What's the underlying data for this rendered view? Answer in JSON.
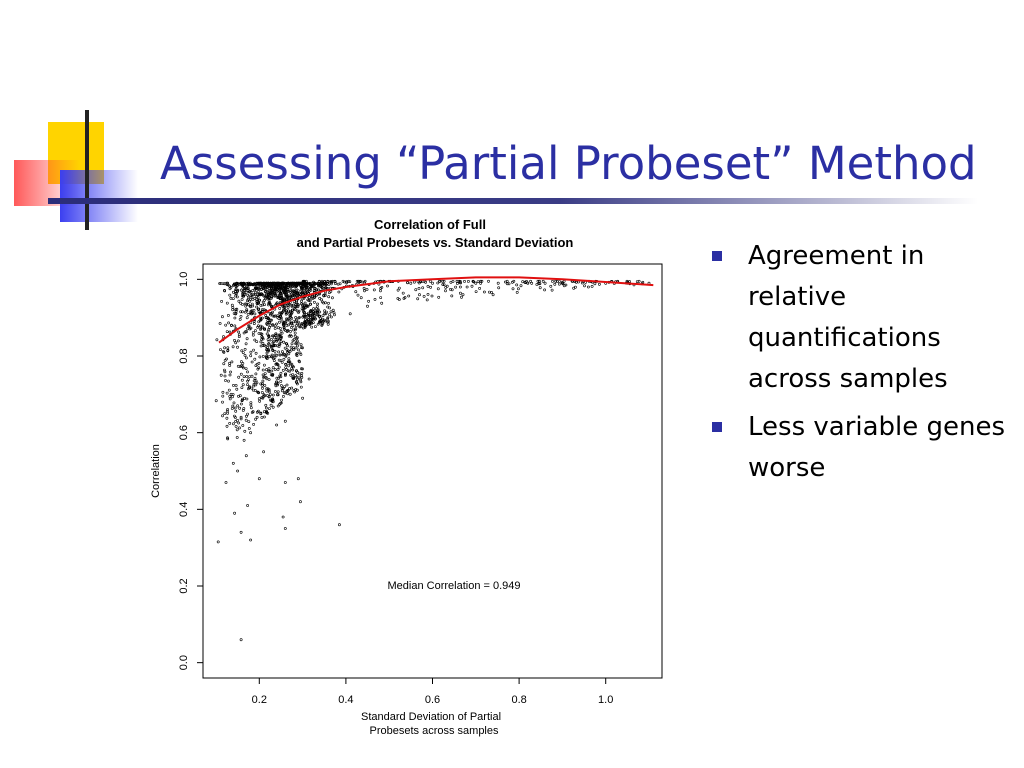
{
  "slide": {
    "title": "Assessing “Partial Probeset” Method",
    "bullets": [
      "Agreement in relative quantifications across samples",
      "Less variable genes worse"
    ]
  },
  "colors": {
    "title": "#2b2fa3",
    "bullet": "#2b2fa3",
    "deco_yellow": "#ffd400",
    "deco_red": "#ff3b3b",
    "deco_blue": "#3b3ff0",
    "fit_line": "#e01010"
  },
  "chart_data": {
    "type": "scatter",
    "title": [
      "Correlation of Full",
      "and Partial Probesets vs. Standard Deviation"
    ],
    "xlabel": [
      "Standard Deviation of Partial",
      "Probesets across samples"
    ],
    "ylabel": "Correlation",
    "xlim": [
      0.07,
      1.13
    ],
    "ylim": [
      -0.04,
      1.04
    ],
    "xticks": [
      0.2,
      0.4,
      0.6,
      0.8,
      1.0
    ],
    "xtick_labels": [
      "0.2",
      "0.4",
      "0.6",
      "0.8",
      "1.0"
    ],
    "yticks": [
      0.0,
      0.2,
      0.4,
      0.6,
      0.8,
      1.0
    ],
    "ytick_labels": [
      "0.0",
      "0.2",
      "0.4",
      "0.6",
      "0.8",
      "1.0"
    ],
    "annotation": "Median Correlation = 0.949",
    "grid": false,
    "points": [
      [
        0.158,
        0.06
      ],
      [
        0.105,
        0.315
      ],
      [
        0.143,
        0.39
      ],
      [
        0.158,
        0.34
      ],
      [
        0.173,
        0.41
      ],
      [
        0.18,
        0.32
      ],
      [
        0.26,
        0.35
      ],
      [
        0.255,
        0.38
      ],
      [
        0.295,
        0.42
      ],
      [
        0.385,
        0.36
      ],
      [
        0.29,
        0.48
      ],
      [
        0.26,
        0.47
      ],
      [
        0.14,
        0.52
      ],
      [
        0.15,
        0.5
      ],
      [
        0.17,
        0.54
      ],
      [
        0.123,
        0.47
      ],
      [
        0.2,
        0.48
      ],
      [
        0.21,
        0.55
      ],
      [
        0.24,
        0.62
      ],
      [
        0.26,
        0.63
      ],
      [
        0.3,
        0.69
      ],
      [
        0.315,
        0.74
      ],
      [
        0.28,
        0.71
      ],
      [
        0.18,
        0.6
      ],
      [
        0.165,
        0.58
      ],
      [
        0.195,
        0.64
      ],
      [
        0.15,
        0.67
      ],
      [
        0.135,
        0.7
      ],
      [
        0.112,
        0.75
      ],
      [
        0.118,
        0.78
      ],
      [
        0.165,
        0.86
      ],
      [
        0.41,
        0.91
      ],
      [
        0.45,
        0.93
      ],
      [
        0.52,
        0.95
      ],
      [
        0.57,
        0.96
      ],
      [
        0.74,
        0.96
      ],
      [
        0.9,
        0.99
      ],
      [
        0.96,
        0.98
      ],
      [
        1.0,
        0.99
      ],
      [
        1.05,
        0.99
      ],
      [
        1.1,
        0.99
      ],
      [
        0.63,
        0.97
      ],
      [
        0.68,
        0.98
      ],
      [
        0.48,
        0.97
      ],
      [
        0.55,
        0.99
      ],
      [
        0.82,
        0.99
      ],
      [
        0.86,
        0.99
      ],
      [
        0.6,
        0.99
      ],
      [
        0.7,
        0.99
      ],
      [
        0.36,
        0.89
      ]
    ],
    "cluster": {
      "x_center": 0.24,
      "x_spread": 0.11,
      "y_top": 0.99,
      "count": 1500
    },
    "fit_line": [
      [
        0.107,
        0.835
      ],
      [
        0.15,
        0.87
      ],
      [
        0.2,
        0.905
      ],
      [
        0.25,
        0.935
      ],
      [
        0.3,
        0.955
      ],
      [
        0.35,
        0.97
      ],
      [
        0.4,
        0.98
      ],
      [
        0.5,
        0.995
      ],
      [
        0.6,
        1.0
      ],
      [
        0.7,
        1.005
      ],
      [
        0.8,
        1.005
      ],
      [
        0.9,
        1.0
      ],
      [
        1.0,
        0.993
      ],
      [
        1.11,
        0.985
      ]
    ]
  }
}
